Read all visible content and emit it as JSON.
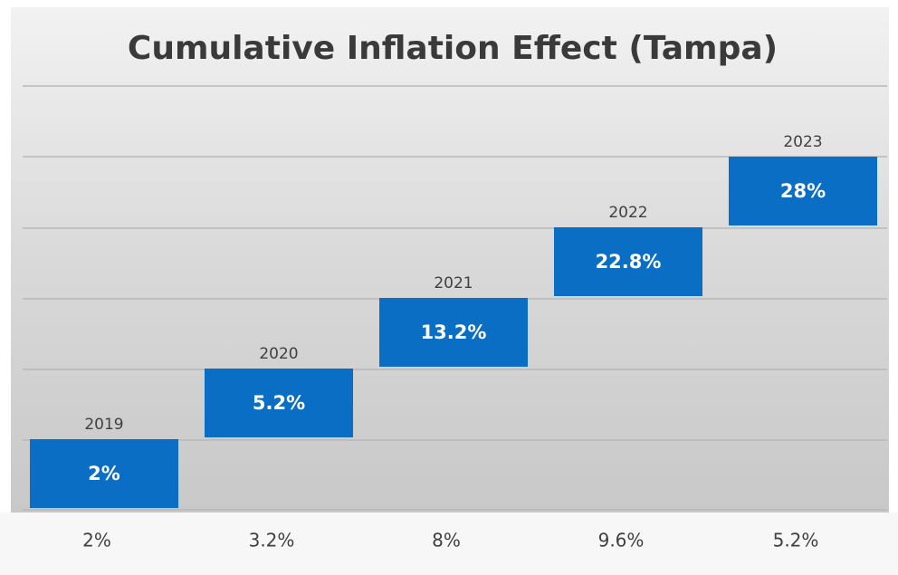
{
  "chart_data": {
    "type": "step",
    "title": "Cumulative Inflation Effect (Tampa)",
    "categories": [
      "2019",
      "2020",
      "2021",
      "2022",
      "2023"
    ],
    "values": [
      2,
      5.2,
      13.2,
      22.8,
      28
    ],
    "value_labels": [
      "2%",
      "5.2%",
      "13.2%",
      "22.8%",
      "28%"
    ],
    "increments": [
      2,
      3.2,
      8,
      9.6,
      5.2
    ],
    "increment_labels": [
      "2%",
      "3.2%",
      "8%",
      "9.6%",
      "5.2%"
    ],
    "color": "#0a6fc4"
  }
}
